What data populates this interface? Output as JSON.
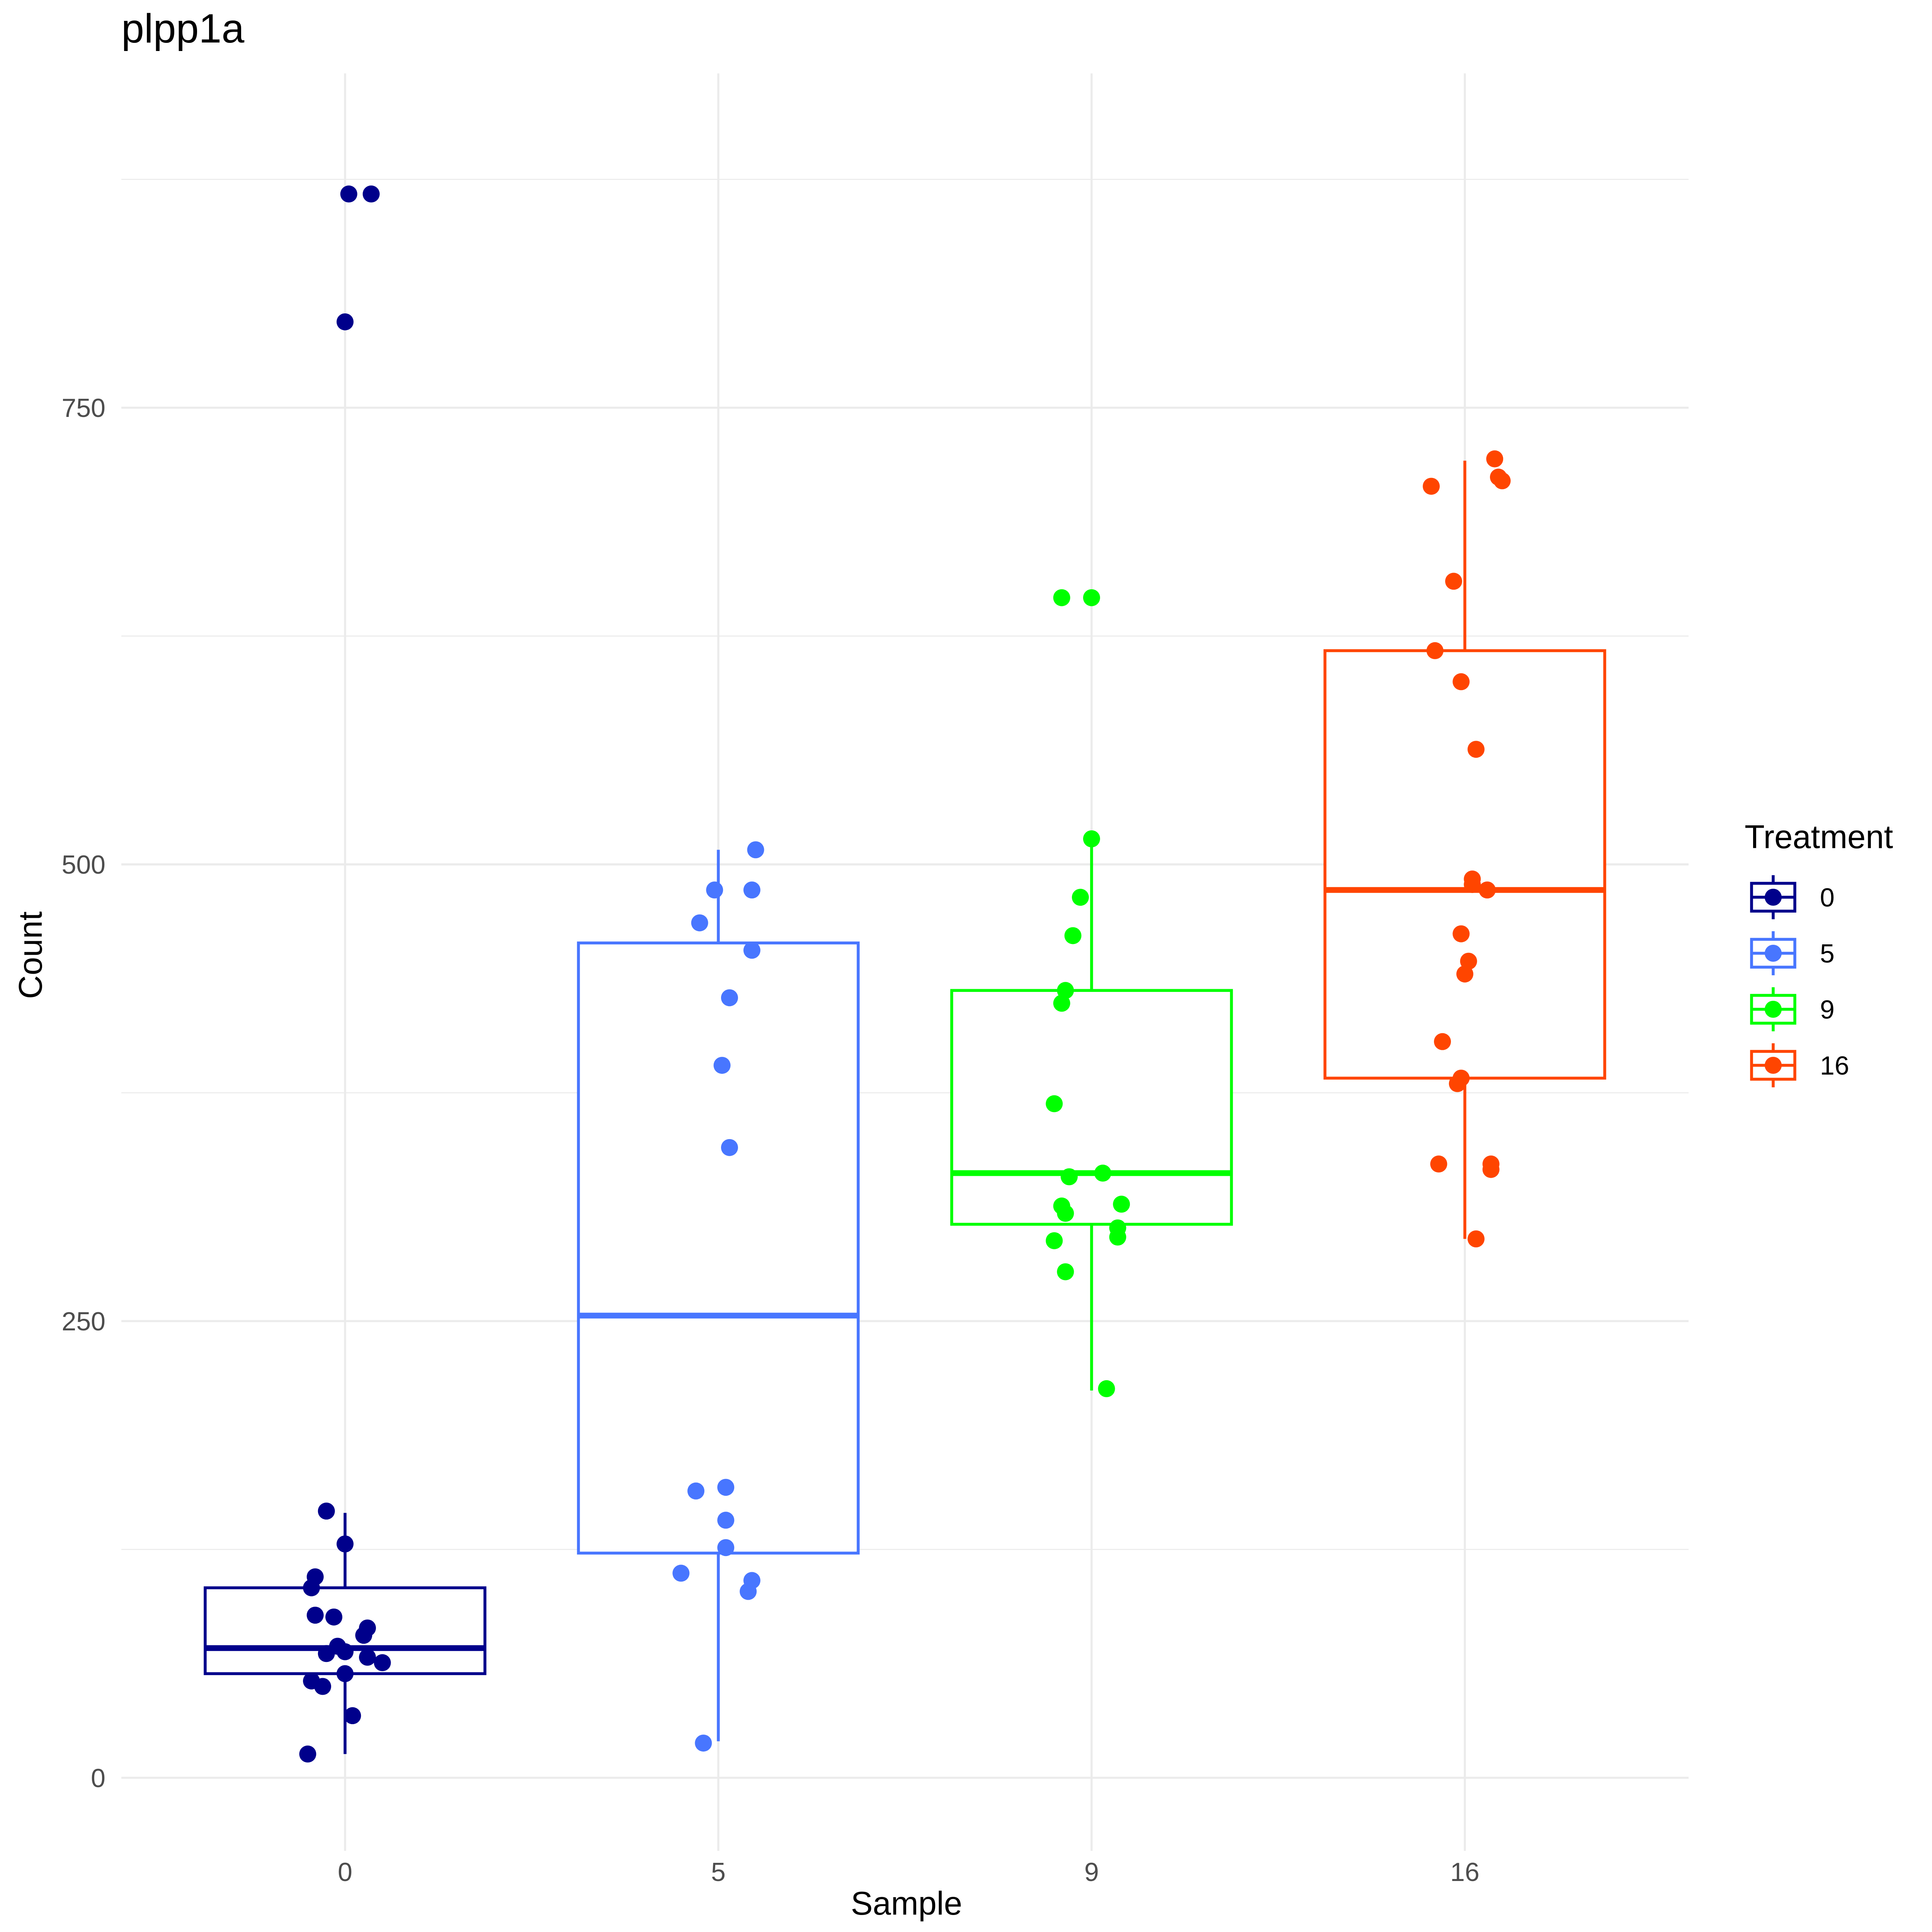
{
  "chart_data": {
    "type": "boxplot",
    "title": "plpp1a",
    "xlabel": "Sample",
    "ylabel": "Count",
    "categories": [
      "0",
      "5",
      "9",
      "16"
    ],
    "ylim": [
      -40,
      933
    ],
    "y_ticks": [
      0,
      250,
      500,
      750
    ],
    "y_tick_labels": [
      "0",
      "250",
      "500",
      "750"
    ],
    "grid": true,
    "legend": {
      "title": "Treatment",
      "position": "right",
      "entries": [
        "0",
        "5",
        "9",
        "16"
      ]
    },
    "colors": {
      "0": "#00008B",
      "5": "#4876FF",
      "9": "#00FF00",
      "16": "#FF4500"
    },
    "series": [
      {
        "name": "0",
        "box": {
          "whisker_low": 13,
          "q1": 57,
          "median": 71,
          "q3": 104,
          "whisker_high": 145
        },
        "points": [
          {
            "dx": 0.01,
            "y": 867
          },
          {
            "dx": 0.07,
            "y": 867
          },
          {
            "dx": 0.0,
            "y": 797
          },
          {
            "dx": -0.05,
            "y": 146
          },
          {
            "dx": 0.0,
            "y": 128
          },
          {
            "dx": -0.08,
            "y": 110
          },
          {
            "dx": -0.09,
            "y": 104
          },
          {
            "dx": -0.08,
            "y": 89
          },
          {
            "dx": -0.03,
            "y": 88
          },
          {
            "dx": 0.06,
            "y": 82
          },
          {
            "dx": 0.05,
            "y": 78
          },
          {
            "dx": -0.02,
            "y": 72
          },
          {
            "dx": 0.0,
            "y": 69
          },
          {
            "dx": -0.05,
            "y": 68
          },
          {
            "dx": 0.06,
            "y": 66
          },
          {
            "dx": 0.1,
            "y": 63
          },
          {
            "dx": 0.0,
            "y": 57
          },
          {
            "dx": -0.09,
            "y": 53
          },
          {
            "dx": -0.06,
            "y": 50
          },
          {
            "dx": 0.02,
            "y": 34
          },
          {
            "dx": -0.1,
            "y": 13
          }
        ]
      },
      {
        "name": "5",
        "box": {
          "whisker_low": 20,
          "q1": 123,
          "median": 253,
          "q3": 457,
          "whisker_high": 508
        },
        "points": [
          {
            "dx": 0.1,
            "y": 508
          },
          {
            "dx": -0.01,
            "y": 486
          },
          {
            "dx": 0.09,
            "y": 486
          },
          {
            "dx": -0.05,
            "y": 468
          },
          {
            "dx": 0.09,
            "y": 453
          },
          {
            "dx": 0.03,
            "y": 427
          },
          {
            "dx": 0.01,
            "y": 390
          },
          {
            "dx": 0.03,
            "y": 345
          },
          {
            "dx": 0.02,
            "y": 159
          },
          {
            "dx": -0.06,
            "y": 157
          },
          {
            "dx": 0.02,
            "y": 141
          },
          {
            "dx": 0.02,
            "y": 126
          },
          {
            "dx": -0.1,
            "y": 112
          },
          {
            "dx": 0.09,
            "y": 108
          },
          {
            "dx": 0.08,
            "y": 102
          },
          {
            "dx": -0.04,
            "y": 19
          }
        ]
      },
      {
        "name": "9",
        "box": {
          "whisker_low": 212,
          "q1": 303,
          "median": 331,
          "q3": 431,
          "whisker_high": 513
        },
        "points": [
          {
            "dx": -0.08,
            "y": 646
          },
          {
            "dx": 0.0,
            "y": 646
          },
          {
            "dx": 0.0,
            "y": 514
          },
          {
            "dx": -0.03,
            "y": 482
          },
          {
            "dx": -0.05,
            "y": 461
          },
          {
            "dx": -0.07,
            "y": 431
          },
          {
            "dx": -0.08,
            "y": 424
          },
          {
            "dx": -0.1,
            "y": 369
          },
          {
            "dx": 0.03,
            "y": 331
          },
          {
            "dx": -0.06,
            "y": 329
          },
          {
            "dx": 0.08,
            "y": 314
          },
          {
            "dx": -0.08,
            "y": 313
          },
          {
            "dx": -0.07,
            "y": 309
          },
          {
            "dx": 0.07,
            "y": 301
          },
          {
            "dx": 0.07,
            "y": 296
          },
          {
            "dx": -0.1,
            "y": 294
          },
          {
            "dx": -0.07,
            "y": 277
          },
          {
            "dx": 0.04,
            "y": 213
          }
        ]
      },
      {
        "name": "16",
        "box": {
          "whisker_low": 295,
          "q1": 383,
          "median": 486,
          "q3": 617,
          "whisker_high": 721
        },
        "points": [
          {
            "dx": 0.08,
            "y": 722
          },
          {
            "dx": 0.09,
            "y": 712
          },
          {
            "dx": 0.1,
            "y": 710
          },
          {
            "dx": -0.09,
            "y": 707
          },
          {
            "dx": -0.03,
            "y": 655
          },
          {
            "dx": -0.08,
            "y": 617
          },
          {
            "dx": -0.01,
            "y": 600
          },
          {
            "dx": 0.03,
            "y": 563
          },
          {
            "dx": 0.02,
            "y": 492
          },
          {
            "dx": 0.02,
            "y": 489
          },
          {
            "dx": 0.06,
            "y": 486
          },
          {
            "dx": -0.01,
            "y": 462
          },
          {
            "dx": 0.01,
            "y": 447
          },
          {
            "dx": 0.0,
            "y": 440
          },
          {
            "dx": -0.06,
            "y": 403
          },
          {
            "dx": -0.01,
            "y": 383
          },
          {
            "dx": -0.02,
            "y": 380
          },
          {
            "dx": -0.07,
            "y": 336
          },
          {
            "dx": 0.07,
            "y": 336
          },
          {
            "dx": 0.07,
            "y": 333
          },
          {
            "dx": 0.03,
            "y": 295
          }
        ]
      }
    ]
  }
}
